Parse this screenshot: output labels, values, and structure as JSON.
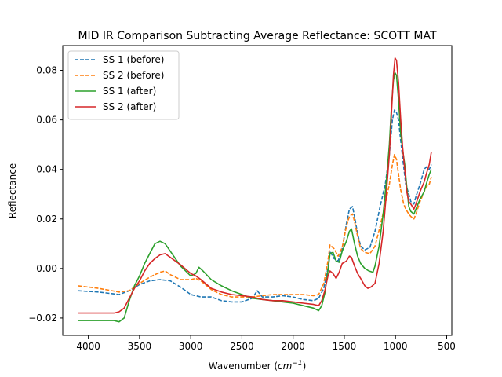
{
  "chart_data": {
    "type": "line",
    "title": "MID IR Comparison Subtracting Average Reflectance: SCOTT MAT",
    "xlabel_main": "Wavenumber (",
    "xlabel_unit": "cm",
    "xlabel_exp": "−1",
    "xlabel_close": ")",
    "ylabel": "Reflectance",
    "xlim": [
      4250,
      450
    ],
    "ylim": [
      -0.027,
      0.09
    ],
    "x_reversed": true,
    "grid": false,
    "legend_position": "top-left",
    "x_ticks": [
      4000,
      3500,
      3000,
      2500,
      2000,
      1500,
      1000,
      500
    ],
    "x_tick_labels": [
      "4000",
      "3500",
      "3000",
      "2500",
      "2000",
      "1500",
      "1000",
      "500"
    ],
    "y_ticks": [
      -0.02,
      0.0,
      0.02,
      0.04,
      0.06,
      0.08
    ],
    "y_tick_labels": [
      "−0.02",
      "0.00",
      "0.02",
      "0.04",
      "0.06",
      "0.08"
    ],
    "series": [
      {
        "name": "SS 1 (before)",
        "color": "#1f77b4",
        "dash": "dashed",
        "points": [
          [
            4100,
            -0.009
          ],
          [
            3900,
            -0.0095
          ],
          [
            3700,
            -0.0105
          ],
          [
            3600,
            -0.009
          ],
          [
            3500,
            -0.0065
          ],
          [
            3400,
            -0.005
          ],
          [
            3300,
            -0.0045
          ],
          [
            3200,
            -0.005
          ],
          [
            3100,
            -0.0075
          ],
          [
            3000,
            -0.0105
          ],
          [
            2900,
            -0.0115
          ],
          [
            2800,
            -0.0115
          ],
          [
            2700,
            -0.013
          ],
          [
            2600,
            -0.0135
          ],
          [
            2500,
            -0.0135
          ],
          [
            2400,
            -0.012
          ],
          [
            2350,
            -0.009
          ],
          [
            2300,
            -0.0115
          ],
          [
            2200,
            -0.0115
          ],
          [
            2100,
            -0.011
          ],
          [
            2000,
            -0.0115
          ],
          [
            1900,
            -0.0125
          ],
          [
            1800,
            -0.013
          ],
          [
            1750,
            -0.012
          ],
          [
            1700,
            -0.008
          ],
          [
            1660,
            0.0
          ],
          [
            1640,
            0.007
          ],
          [
            1600,
            0.004
          ],
          [
            1560,
            0.003
          ],
          [
            1520,
            0.008
          ],
          [
            1480,
            0.018
          ],
          [
            1450,
            0.024
          ],
          [
            1420,
            0.025
          ],
          [
            1400,
            0.021
          ],
          [
            1370,
            0.014
          ],
          [
            1340,
            0.009
          ],
          [
            1300,
            0.0075
          ],
          [
            1250,
            0.0085
          ],
          [
            1200,
            0.015
          ],
          [
            1150,
            0.025
          ],
          [
            1100,
            0.034
          ],
          [
            1060,
            0.046
          ],
          [
            1030,
            0.06
          ],
          [
            1010,
            0.064
          ],
          [
            990,
            0.063
          ],
          [
            970,
            0.06
          ],
          [
            950,
            0.052
          ],
          [
            920,
            0.041
          ],
          [
            900,
            0.034
          ],
          [
            870,
            0.03
          ],
          [
            850,
            0.027
          ],
          [
            820,
            0.026
          ],
          [
            800,
            0.029
          ],
          [
            760,
            0.034
          ],
          [
            720,
            0.04
          ],
          [
            700,
            0.041
          ],
          [
            670,
            0.04
          ],
          [
            650,
            0.042
          ]
        ]
      },
      {
        "name": "SS 2 (before)",
        "color": "#ff7f0e",
        "dash": "dashed",
        "points": [
          [
            4100,
            -0.007
          ],
          [
            3900,
            -0.008
          ],
          [
            3700,
            -0.0095
          ],
          [
            3600,
            -0.009
          ],
          [
            3500,
            -0.006
          ],
          [
            3400,
            -0.0035
          ],
          [
            3300,
            -0.0015
          ],
          [
            3250,
            -0.001
          ],
          [
            3200,
            -0.0025
          ],
          [
            3100,
            -0.0045
          ],
          [
            3000,
            -0.0045
          ],
          [
            2950,
            -0.004
          ],
          [
            2900,
            -0.005
          ],
          [
            2800,
            -0.0085
          ],
          [
            2700,
            -0.0105
          ],
          [
            2600,
            -0.0115
          ],
          [
            2500,
            -0.0115
          ],
          [
            2400,
            -0.0115
          ],
          [
            2300,
            -0.011
          ],
          [
            2200,
            -0.0105
          ],
          [
            2100,
            -0.0105
          ],
          [
            2000,
            -0.0105
          ],
          [
            1900,
            -0.0105
          ],
          [
            1800,
            -0.011
          ],
          [
            1750,
            -0.0105
          ],
          [
            1700,
            -0.006
          ],
          [
            1660,
            0.003
          ],
          [
            1640,
            0.0095
          ],
          [
            1600,
            0.008
          ],
          [
            1560,
            0.005
          ],
          [
            1520,
            0.0085
          ],
          [
            1480,
            0.017
          ],
          [
            1450,
            0.021
          ],
          [
            1420,
            0.022
          ],
          [
            1400,
            0.019
          ],
          [
            1370,
            0.013
          ],
          [
            1340,
            0.008
          ],
          [
            1300,
            0.0065
          ],
          [
            1250,
            0.006
          ],
          [
            1200,
            0.009
          ],
          [
            1150,
            0.017
          ],
          [
            1100,
            0.026
          ],
          [
            1060,
            0.034
          ],
          [
            1030,
            0.042
          ],
          [
            1010,
            0.046
          ],
          [
            990,
            0.044
          ],
          [
            970,
            0.038
          ],
          [
            950,
            0.032
          ],
          [
            920,
            0.026
          ],
          [
            900,
            0.024
          ],
          [
            870,
            0.022
          ],
          [
            850,
            0.021
          ],
          [
            820,
            0.02
          ],
          [
            800,
            0.022
          ],
          [
            760,
            0.027
          ],
          [
            720,
            0.031
          ],
          [
            700,
            0.033
          ],
          [
            670,
            0.034
          ],
          [
            650,
            0.037
          ]
        ]
      },
      {
        "name": "SS 1 (after)",
        "color": "#2ca02c",
        "dash": "solid",
        "points": [
          [
            4100,
            -0.021
          ],
          [
            3900,
            -0.021
          ],
          [
            3750,
            -0.021
          ],
          [
            3700,
            -0.0215
          ],
          [
            3650,
            -0.02
          ],
          [
            3600,
            -0.013
          ],
          [
            3550,
            -0.007
          ],
          [
            3500,
            -0.003
          ],
          [
            3450,
            0.002
          ],
          [
            3400,
            0.006
          ],
          [
            3350,
            0.01
          ],
          [
            3300,
            0.011
          ],
          [
            3250,
            0.01
          ],
          [
            3200,
            0.007
          ],
          [
            3100,
            0.001
          ],
          [
            3000,
            -0.003
          ],
          [
            2950,
            -0.002
          ],
          [
            2920,
            0.0005
          ],
          [
            2880,
            -0.001
          ],
          [
            2800,
            -0.0045
          ],
          [
            2700,
            -0.007
          ],
          [
            2600,
            -0.009
          ],
          [
            2500,
            -0.0105
          ],
          [
            2400,
            -0.012
          ],
          [
            2300,
            -0.0125
          ],
          [
            2200,
            -0.013
          ],
          [
            2100,
            -0.0135
          ],
          [
            2000,
            -0.014
          ],
          [
            1900,
            -0.015
          ],
          [
            1800,
            -0.016
          ],
          [
            1750,
            -0.017
          ],
          [
            1720,
            -0.015
          ],
          [
            1690,
            -0.01
          ],
          [
            1660,
            -0.001
          ],
          [
            1640,
            0.006
          ],
          [
            1610,
            0.0065
          ],
          [
            1580,
            0.003
          ],
          [
            1550,
            0.0025
          ],
          [
            1520,
            0.007
          ],
          [
            1480,
            0.011
          ],
          [
            1450,
            0.015
          ],
          [
            1430,
            0.016
          ],
          [
            1400,
            0.01
          ],
          [
            1370,
            0.005
          ],
          [
            1340,
            0.002
          ],
          [
            1300,
            0.0
          ],
          [
            1260,
            -0.001
          ],
          [
            1220,
            -0.0015
          ],
          [
            1200,
            0.001
          ],
          [
            1160,
            0.009
          ],
          [
            1120,
            0.022
          ],
          [
            1090,
            0.035
          ],
          [
            1060,
            0.05
          ],
          [
            1040,
            0.065
          ],
          [
            1020,
            0.076
          ],
          [
            1005,
            0.079
          ],
          [
            990,
            0.078
          ],
          [
            970,
            0.068
          ],
          [
            950,
            0.055
          ],
          [
            930,
            0.048
          ],
          [
            910,
            0.042
          ],
          [
            890,
            0.033
          ],
          [
            870,
            0.025
          ],
          [
            850,
            0.023
          ],
          [
            820,
            0.022
          ],
          [
            800,
            0.024
          ],
          [
            760,
            0.028
          ],
          [
            720,
            0.031
          ],
          [
            700,
            0.034
          ],
          [
            670,
            0.038
          ],
          [
            650,
            0.04
          ]
        ]
      },
      {
        "name": "SS 2 (after)",
        "color": "#d62728",
        "dash": "solid",
        "points": [
          [
            4100,
            -0.018
          ],
          [
            3900,
            -0.018
          ],
          [
            3750,
            -0.018
          ],
          [
            3700,
            -0.0175
          ],
          [
            3650,
            -0.016
          ],
          [
            3600,
            -0.012
          ],
          [
            3550,
            -0.008
          ],
          [
            3500,
            -0.005
          ],
          [
            3450,
            -0.001
          ],
          [
            3400,
            0.002
          ],
          [
            3350,
            0.004
          ],
          [
            3300,
            0.0055
          ],
          [
            3250,
            0.006
          ],
          [
            3200,
            0.0045
          ],
          [
            3100,
            0.0015
          ],
          [
            3000,
            -0.002
          ],
          [
            2950,
            -0.003
          ],
          [
            2900,
            -0.0045
          ],
          [
            2800,
            -0.008
          ],
          [
            2700,
            -0.0095
          ],
          [
            2600,
            -0.0105
          ],
          [
            2500,
            -0.011
          ],
          [
            2400,
            -0.0115
          ],
          [
            2300,
            -0.0125
          ],
          [
            2200,
            -0.013
          ],
          [
            2100,
            -0.013
          ],
          [
            2000,
            -0.0135
          ],
          [
            1900,
            -0.014
          ],
          [
            1800,
            -0.0145
          ],
          [
            1750,
            -0.015
          ],
          [
            1720,
            -0.013
          ],
          [
            1690,
            -0.009
          ],
          [
            1660,
            -0.003
          ],
          [
            1640,
            -0.001
          ],
          [
            1610,
            -0.002
          ],
          [
            1580,
            -0.004
          ],
          [
            1550,
            -0.0015
          ],
          [
            1520,
            0.002
          ],
          [
            1480,
            0.003
          ],
          [
            1450,
            0.005
          ],
          [
            1430,
            0.0045
          ],
          [
            1400,
            0.001
          ],
          [
            1370,
            -0.002
          ],
          [
            1340,
            -0.004
          ],
          [
            1300,
            -0.007
          ],
          [
            1270,
            -0.008
          ],
          [
            1240,
            -0.0075
          ],
          [
            1200,
            -0.006
          ],
          [
            1160,
            0.002
          ],
          [
            1120,
            0.015
          ],
          [
            1090,
            0.03
          ],
          [
            1060,
            0.046
          ],
          [
            1040,
            0.062
          ],
          [
            1020,
            0.078
          ],
          [
            1005,
            0.085
          ],
          [
            990,
            0.084
          ],
          [
            970,
            0.075
          ],
          [
            950,
            0.061
          ],
          [
            930,
            0.049
          ],
          [
            910,
            0.04
          ],
          [
            890,
            0.031
          ],
          [
            870,
            0.027
          ],
          [
            850,
            0.026
          ],
          [
            820,
            0.024
          ],
          [
            800,
            0.026
          ],
          [
            760,
            0.031
          ],
          [
            720,
            0.035
          ],
          [
            700,
            0.038
          ],
          [
            670,
            0.042
          ],
          [
            650,
            0.047
          ]
        ]
      }
    ]
  }
}
